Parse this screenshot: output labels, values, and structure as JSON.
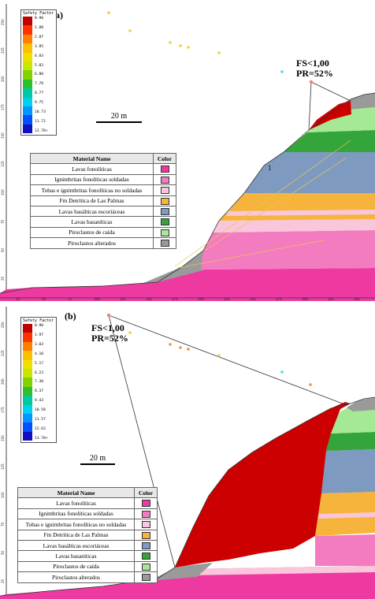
{
  "figure": {
    "panels": [
      {
        "label": "(a)",
        "fs": "FS<1,00",
        "pr": "PR=52%",
        "scale_label": "20 m"
      },
      {
        "label": "(b)",
        "fs": "FS<1,00",
        "pr": "PR=52%",
        "scale_label": "20 m"
      }
    ],
    "safety_legend": [
      {
        "title": "Safety Factor",
        "values": [
          "0.90",
          "1.88",
          "2.87",
          "3.85",
          "4.83",
          "5.82",
          "6.80",
          "7.78",
          "8.77",
          "9.75",
          "10.73",
          "11.72",
          "12.70+"
        ]
      },
      {
        "title": "Safety Factor",
        "values": [
          "0.90",
          "1.97",
          "3.03",
          "4.10",
          "5.17",
          "6.23",
          "7.30",
          "8.37",
          "9.43",
          "10.50",
          "11.57",
          "12.63",
          "13.70+"
        ]
      }
    ],
    "sf_colors": [
      "#c00000",
      "#ff3300",
      "#ff7f00",
      "#ffbf00",
      "#f0e000",
      "#c8e600",
      "#7fd400",
      "#2ebf2e",
      "#00c8a0",
      "#00d0f0",
      "#0096ff",
      "#0050ff",
      "#1010c0"
    ],
    "table": {
      "header_name": "Material Name",
      "header_color": "Color",
      "materials": [
        {
          "name": "Lavas fonolíticas",
          "color": "#ee3aa0"
        },
        {
          "name": "Ignimbritas fonolíticas soldadas",
          "color": "#f37cc0"
        },
        {
          "name": "Tobas e ignimbritas fonolíticas no soldadas",
          "color": "#f9c6dc"
        },
        {
          "name": "Fm Detrítica de Las Palmas",
          "color": "#f6b43c"
        },
        {
          "name": "Lavas basálticas escoriáceas",
          "color": "#7f9ac0"
        },
        {
          "name": "Lavas basaníticas",
          "color": "#33a53a"
        },
        {
          "name": "Piroclastos de caída",
          "color": "#a5e895"
        },
        {
          "name": "Piroclastos alterados",
          "color": "#9a9a9a"
        }
      ]
    },
    "x_ticks": [
      "25",
      "50",
      "75",
      "100",
      "125",
      "150",
      "175",
      "200",
      "225",
      "250",
      "275",
      "300",
      "325",
      "350"
    ],
    "y_ticks": [
      "250",
      "225",
      "200",
      "175",
      "150",
      "125",
      "100",
      "75",
      "50",
      "25"
    ],
    "slide_marker": "1"
  }
}
